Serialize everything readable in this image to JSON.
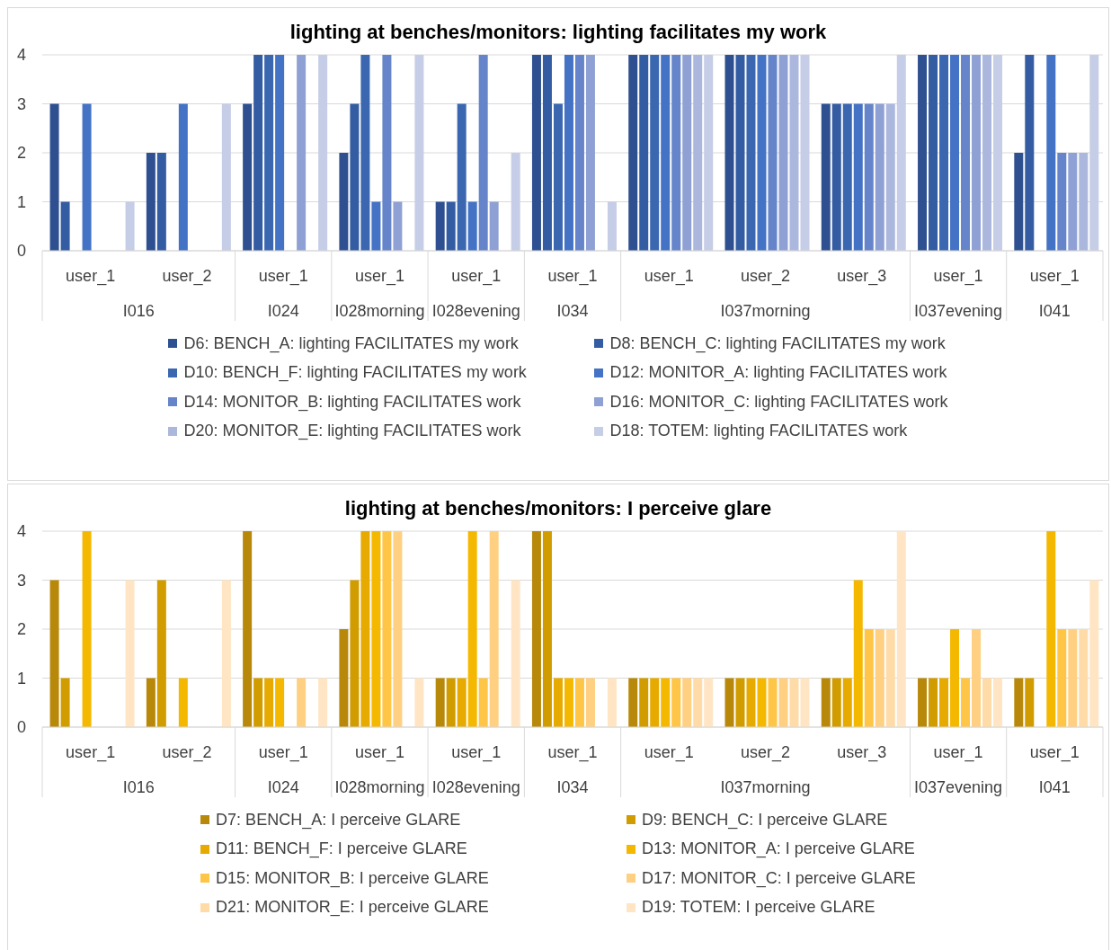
{
  "chart_data": [
    {
      "type": "bar",
      "title": "lighting at benches/monitors: lighting facilitates my work",
      "categories": [
        "user_1\nI016",
        "user_2",
        "user_1\nI024",
        "user_1\nI028morning",
        "user_1\nI028evening",
        "user_1\nI034",
        "user_1",
        "user_2\nI037morning",
        "user_3",
        "user_1\nI037evening",
        "user_1\nI041"
      ],
      "series": [
        {
          "name": "D6: BENCH_A: lighting FACILITATES my work",
          "color": "#2f5090",
          "values": [
            3,
            2,
            3,
            2,
            1,
            4,
            4,
            4,
            3,
            4,
            2
          ]
        },
        {
          "name": "D8: BENCH_C: lighting FACILITATES my work",
          "color": "#345ca2",
          "values": [
            1,
            2,
            4,
            3,
            1,
            4,
            4,
            4,
            3,
            4,
            4
          ]
        },
        {
          "name": "D10: BENCH_F: lighting FACILITATES my work",
          "color": "#3b67b1",
          "values": [
            null,
            null,
            4,
            4,
            3,
            3,
            4,
            4,
            3,
            4,
            null
          ]
        },
        {
          "name": "D12: MONITOR_A: lighting FACILITATES work",
          "color": "#4472c4",
          "values": [
            3,
            3,
            4,
            1,
            1,
            4,
            4,
            4,
            3,
            4,
            4
          ]
        },
        {
          "name": "D14: MONITOR_B: lighting FACILITATES work",
          "color": "#6584c9",
          "values": [
            null,
            null,
            null,
            4,
            4,
            4,
            4,
            4,
            3,
            4,
            2
          ]
        },
        {
          "name": "D16: MONITOR_C: lighting FACILITATES work",
          "color": "#8fa1d4",
          "values": [
            null,
            null,
            4,
            1,
            1,
            4,
            4,
            4,
            3,
            4,
            2
          ]
        },
        {
          "name": "D20: MONITOR_E: lighting FACILITATES work",
          "color": "#abb7dd",
          "values": [
            null,
            null,
            null,
            null,
            null,
            null,
            4,
            4,
            3,
            4,
            2
          ]
        },
        {
          "name": "D18: TOTEM: lighting FACILITATES work",
          "color": "#c6cde6",
          "values": [
            1,
            3,
            4,
            4,
            2,
            1,
            4,
            4,
            4,
            4,
            4
          ]
        }
      ],
      "ylim": [
        0,
        4
      ],
      "yticks": [
        0,
        1,
        2,
        3,
        4
      ],
      "grid": "y",
      "legend": "bottom"
    },
    {
      "type": "bar",
      "title": "lighting at benches/monitors: I perceive glare",
      "categories": [
        "user_1\nI016",
        "user_2",
        "user_1\nI024",
        "user_1\nI028morning",
        "user_1\nI028evening",
        "user_1\nI034",
        "user_1",
        "user_2\nI037morning",
        "user_3",
        "user_1\nI037evening",
        "user_1\nI041"
      ],
      "series": [
        {
          "name": "D7: BENCH_A: I perceive GLARE",
          "color": "#b8880a",
          "values": [
            3,
            1,
            4,
            2,
            1,
            4,
            1,
            1,
            1,
            1,
            1
          ]
        },
        {
          "name": "D9: BENCH_C: I perceive GLARE",
          "color": "#d09c00",
          "values": [
            1,
            3,
            1,
            3,
            1,
            4,
            1,
            1,
            1,
            1,
            1
          ]
        },
        {
          "name": "D11: BENCH_F: I perceive GLARE",
          "color": "#e6aa00",
          "values": [
            null,
            null,
            1,
            4,
            1,
            1,
            1,
            1,
            1,
            1,
            null
          ]
        },
        {
          "name": "D13: MONITOR_A: I perceive GLARE",
          "color": "#f5b800",
          "values": [
            4,
            1,
            1,
            4,
            4,
            1,
            1,
            1,
            3,
            2,
            4
          ]
        },
        {
          "name": "D15: MONITOR_B: I perceive GLARE",
          "color": "#ffc547",
          "values": [
            null,
            null,
            null,
            4,
            1,
            1,
            1,
            1,
            2,
            1,
            2
          ]
        },
        {
          "name": "D17: MONITOR_C: I perceive GLARE",
          "color": "#ffcf82",
          "values": [
            null,
            null,
            1,
            4,
            4,
            1,
            1,
            1,
            2,
            2,
            2
          ]
        },
        {
          "name": "D21: MONITOR_E: I perceive GLARE",
          "color": "#ffdba8",
          "values": [
            null,
            null,
            null,
            null,
            null,
            null,
            1,
            1,
            2,
            1,
            2
          ]
        },
        {
          "name": "D19: TOTEM: I perceive GLARE",
          "color": "#ffe5c4",
          "values": [
            3,
            3,
            1,
            1,
            3,
            1,
            1,
            1,
            4,
            1,
            3
          ]
        }
      ],
      "ylim": [
        0,
        4
      ],
      "yticks": [
        0,
        1,
        2,
        3,
        4
      ],
      "grid": "y",
      "legend": "bottom"
    }
  ]
}
